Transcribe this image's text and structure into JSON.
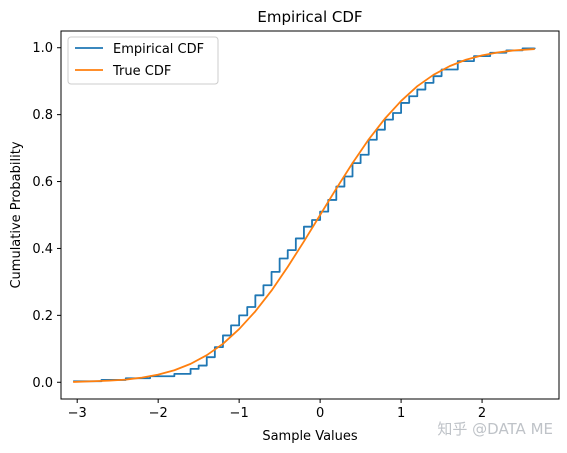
{
  "chart_data": {
    "type": "line",
    "title": "Empirical CDF",
    "xlabel": "Sample Values",
    "ylabel": "Cumulative Probability",
    "xlim": [
      -3.2,
      2.95
    ],
    "ylim": [
      -0.05,
      1.05
    ],
    "x_ticks": [
      -3,
      -2,
      -1,
      0,
      1,
      2
    ],
    "x_tick_labels": [
      "−3",
      "−2",
      "−1",
      "0",
      "1",
      "2"
    ],
    "y_ticks": [
      0.0,
      0.2,
      0.4,
      0.6,
      0.8,
      1.0
    ],
    "y_tick_labels": [
      "0.0",
      "0.2",
      "0.4",
      "0.6",
      "0.8",
      "1.0"
    ],
    "grid": false,
    "legend_position": "top-left",
    "series": [
      {
        "name": "Empirical CDF",
        "color": "#1f77b4",
        "x": [
          -3.05,
          -2.7,
          -2.4,
          -2.1,
          -1.8,
          -1.6,
          -1.5,
          -1.4,
          -1.3,
          -1.2,
          -1.1,
          -1.0,
          -0.9,
          -0.8,
          -0.7,
          -0.6,
          -0.5,
          -0.4,
          -0.3,
          -0.2,
          -0.1,
          0.0,
          0.1,
          0.2,
          0.3,
          0.4,
          0.5,
          0.6,
          0.7,
          0.8,
          0.9,
          1.0,
          1.1,
          1.2,
          1.3,
          1.4,
          1.5,
          1.7,
          1.9,
          2.1,
          2.3,
          2.5,
          2.65
        ],
        "y": [
          0.003,
          0.007,
          0.012,
          0.018,
          0.025,
          0.04,
          0.05,
          0.075,
          0.105,
          0.14,
          0.17,
          0.2,
          0.225,
          0.26,
          0.29,
          0.33,
          0.37,
          0.395,
          0.43,
          0.465,
          0.485,
          0.51,
          0.545,
          0.585,
          0.615,
          0.655,
          0.68,
          0.725,
          0.755,
          0.785,
          0.805,
          0.835,
          0.855,
          0.875,
          0.895,
          0.915,
          0.935,
          0.96,
          0.975,
          0.985,
          0.992,
          0.998,
          1.0
        ]
      },
      {
        "name": "True CDF",
        "color": "#ff7f0e",
        "x": [
          -3.05,
          -2.8,
          -2.6,
          -2.4,
          -2.2,
          -2.0,
          -1.8,
          -1.6,
          -1.4,
          -1.2,
          -1.0,
          -0.8,
          -0.6,
          -0.4,
          -0.2,
          0.0,
          0.2,
          0.4,
          0.6,
          0.8,
          1.0,
          1.2,
          1.4,
          1.6,
          1.8,
          2.0,
          2.2,
          2.4,
          2.65
        ],
        "y": [
          0.001,
          0.003,
          0.005,
          0.008,
          0.014,
          0.023,
          0.036,
          0.055,
          0.081,
          0.115,
          0.159,
          0.212,
          0.274,
          0.345,
          0.421,
          0.5,
          0.579,
          0.655,
          0.726,
          0.788,
          0.841,
          0.885,
          0.919,
          0.945,
          0.964,
          0.977,
          0.986,
          0.992,
          0.996
        ]
      }
    ]
  },
  "watermark": "知乎 @DATA ME"
}
